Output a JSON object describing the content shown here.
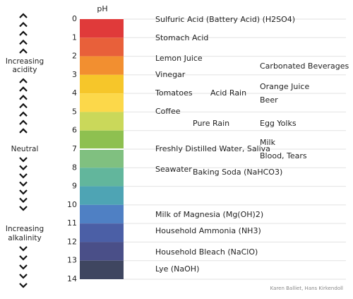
{
  "scale": {
    "title": "pH",
    "levels": [
      0,
      1,
      2,
      3,
      4,
      5,
      6,
      7,
      8,
      9,
      10,
      11,
      12,
      13,
      14
    ],
    "band_colors": [
      "#e03a3a",
      "#e8603a",
      "#f28f30",
      "#f6c62a",
      "#fcd84a",
      "#cad85a",
      "#8ec050",
      "#80c080",
      "#62b69c",
      "#4ea4b4",
      "#4f80c4",
      "#4b5fa6",
      "#4a4f88",
      "#3f4660"
    ]
  },
  "substances": [
    "Sulfuric Acid (Battery Acid) (H2SO4)",
    "Stomach Acid",
    "Lemon Juice",
    "Carbonated Beverages",
    "Vinegar",
    "Orange Juice",
    "Tomatoes",
    "Acid Rain",
    "Beer",
    "Coffee",
    "Pure Rain",
    "Egg Yolks",
    "Milk",
    "Freshly Distilled Water, Saliva",
    "Blood, Tears",
    "Seawater",
    "Baking Soda (NaHCO3)",
    "Milk of Magnesia (Mg(OH)2)",
    "Household Ammonia (NH3)",
    "Household Bleach (NaClO)",
    "Lye (NaOH)"
  ],
  "side_labels": {
    "acidity": [
      "Increasing",
      "acidity"
    ],
    "neutral": "Neutral",
    "alkalinity": [
      "Increasing",
      "alkalinity"
    ]
  },
  "credit": "Karen Balliet, Hans Kirkendoll"
}
